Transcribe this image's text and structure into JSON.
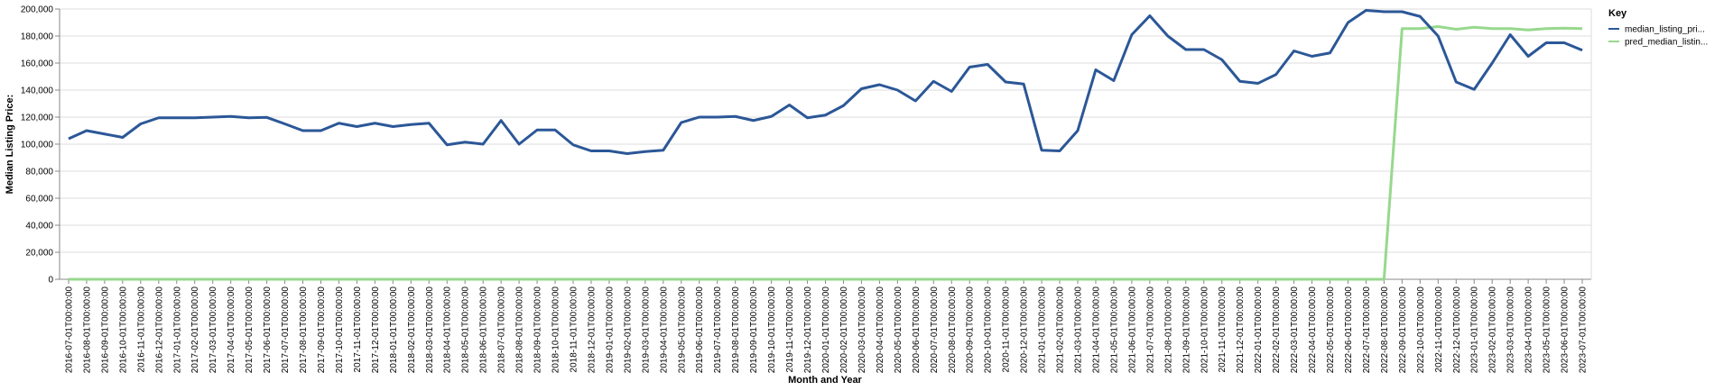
{
  "chart_data": {
    "type": "line",
    "x_label": "Month and Year",
    "y_label": "Median Listing Price:",
    "legend_title": "Key",
    "legend_position": "right",
    "grid": true,
    "categories": [
      "2016-07-01T00:00:00",
      "2016-08-01T00:00:00",
      "2016-09-01T00:00:00",
      "2016-10-01T00:00:00",
      "2016-11-01T00:00:00",
      "2016-12-01T00:00:00",
      "2017-01-01T00:00:00",
      "2017-02-01T00:00:00",
      "2017-03-01T00:00:00",
      "2017-04-01T00:00:00",
      "2017-05-01T00:00:00",
      "2017-06-01T00:00:00",
      "2017-07-01T00:00:00",
      "2017-08-01T00:00:00",
      "2017-09-01T00:00:00",
      "2017-10-01T00:00:00",
      "2017-11-01T00:00:00",
      "2017-12-01T00:00:00",
      "2018-01-01T00:00:00",
      "2018-02-01T00:00:00",
      "2018-03-01T00:00:00",
      "2018-04-01T00:00:00",
      "2018-05-01T00:00:00",
      "2018-06-01T00:00:00",
      "2018-07-01T00:00:00",
      "2018-08-01T00:00:00",
      "2018-09-01T00:00:00",
      "2018-10-01T00:00:00",
      "2018-11-01T00:00:00",
      "2018-12-01T00:00:00",
      "2019-01-01T00:00:00",
      "2019-02-01T00:00:00",
      "2019-03-01T00:00:00",
      "2019-04-01T00:00:00",
      "2019-05-01T00:00:00",
      "2019-06-01T00:00:00",
      "2019-07-01T00:00:00",
      "2019-08-01T00:00:00",
      "2019-09-01T00:00:00",
      "2019-10-01T00:00:00",
      "2019-11-01T00:00:00",
      "2019-12-01T00:00:00",
      "2020-01-01T00:00:00",
      "2020-02-01T00:00:00",
      "2020-03-01T00:00:00",
      "2020-04-01T00:00:00",
      "2020-05-01T00:00:00",
      "2020-06-01T00:00:00",
      "2020-07-01T00:00:00",
      "2020-08-01T00:00:00",
      "2020-09-01T00:00:00",
      "2020-10-01T00:00:00",
      "2020-11-01T00:00:00",
      "2020-12-01T00:00:00",
      "2021-01-01T00:00:00",
      "2021-02-01T00:00:00",
      "2021-03-01T00:00:00",
      "2021-04-01T00:00:00",
      "2021-05-01T00:00:00",
      "2021-06-01T00:00:00",
      "2021-07-01T00:00:00",
      "2021-08-01T00:00:00",
      "2021-09-01T00:00:00",
      "2021-10-01T00:00:00",
      "2021-11-01T00:00:00",
      "2021-12-01T00:00:00",
      "2022-01-01T00:00:00",
      "2022-02-01T00:00:00",
      "2022-03-01T00:00:00",
      "2022-04-01T00:00:00",
      "2022-05-01T00:00:00",
      "2022-06-01T00:00:00",
      "2022-07-01T00:00:00",
      "2022-08-01T00:00:00",
      "2022-09-01T00:00:00",
      "2022-10-01T00:00:00",
      "2022-11-01T00:00:00",
      "2022-12-01T00:00:00",
      "2023-01-01T00:00:00",
      "2023-02-01T00:00:00",
      "2023-03-01T00:00:00",
      "2023-04-01T00:00:00",
      "2023-05-01T00:00:00",
      "2023-06-01T00:00:00",
      "2023-07-01T00:00:00"
    ],
    "series": [
      {
        "name": "median_listing_pri...",
        "color": "#2b5797",
        "values": [
          104000,
          110000,
          107500,
          105000,
          115000,
          119500,
          119500,
          119500,
          120000,
          120500,
          119500,
          119800,
          115000,
          110000,
          110000,
          115500,
          113000,
          115500,
          113000,
          114500,
          115500,
          99500,
          101500,
          100000,
          117500,
          100000,
          110500,
          110500,
          99500,
          95000,
          95000,
          93000,
          94500,
          95500,
          116000,
          120000,
          120000,
          120500,
          117500,
          120500,
          129000,
          119500,
          121500,
          128500,
          141000,
          144000,
          140000,
          132000,
          146500,
          139000,
          157000,
          159000,
          146000,
          144500,
          95500,
          95000,
          110000,
          155000,
          147000,
          181000,
          195000,
          180000,
          170000,
          170000,
          162500,
          146500,
          145000,
          151500,
          169000,
          165000,
          167500,
          190000,
          199000,
          198000,
          198000,
          194500,
          180000,
          146000,
          140500,
          160000,
          181000,
          165000,
          175000,
          175000,
          169500
        ]
      },
      {
        "name": "pred_median_listin...",
        "color": "#98d88e",
        "values": [
          0,
          0,
          0,
          0,
          0,
          0,
          0,
          0,
          0,
          0,
          0,
          0,
          0,
          0,
          0,
          0,
          0,
          0,
          0,
          0,
          0,
          0,
          0,
          0,
          0,
          0,
          0,
          0,
          0,
          0,
          0,
          0,
          0,
          0,
          0,
          0,
          0,
          0,
          0,
          0,
          0,
          0,
          0,
          0,
          0,
          0,
          0,
          0,
          0,
          0,
          0,
          0,
          0,
          0,
          0,
          0,
          0,
          0,
          0,
          0,
          0,
          0,
          0,
          0,
          0,
          0,
          0,
          0,
          0,
          0,
          0,
          0,
          0,
          0,
          185500,
          185500,
          187000,
          185000,
          186500,
          185500,
          185500,
          184500,
          185500,
          185800,
          185500
        ]
      }
    ],
    "ylim": [
      0,
      200000
    ],
    "yticks": [
      0,
      {
        "value": 20000,
        "label": "20,000"
      },
      {
        "value": 40000,
        "label": "40,000"
      },
      {
        "value": 60000,
        "label": "60,000"
      },
      {
        "value": 80000,
        "label": "80,000"
      },
      {
        "value": 100000,
        "label": "100,000"
      },
      {
        "value": 120000,
        "label": "120,000"
      },
      {
        "value": 140000,
        "label": "140,000"
      },
      {
        "value": 160000,
        "label": "160,000"
      },
      {
        "value": 180000,
        "label": "180,000"
      },
      {
        "value": 200000,
        "label": "200,000"
      }
    ]
  }
}
